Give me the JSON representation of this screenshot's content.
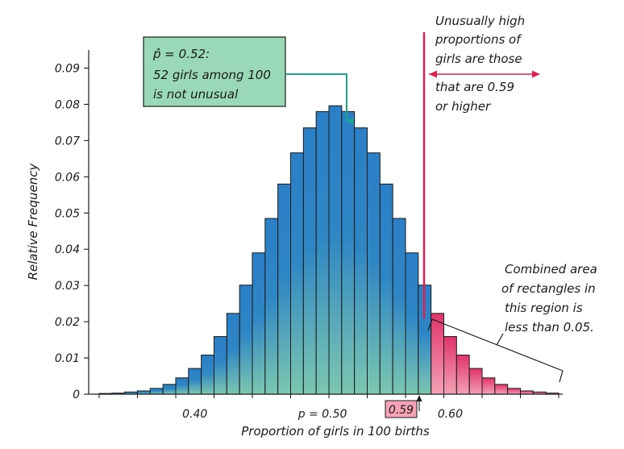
{
  "chart_data": {
    "type": "bar",
    "xlabel": "Proportion of girls in 100 births",
    "ylabel": "Relative Frequency",
    "ylim": [
      0,
      0.095
    ],
    "xlim": [
      0.32,
      0.69
    ],
    "bar_width": 0.01,
    "y_ticks": [
      "0",
      "0.01",
      "0.02",
      "0.03",
      "0.04",
      "0.05",
      "0.06",
      "0.07",
      "0.08",
      "0.09"
    ],
    "y_tick_values": [
      0,
      0.01,
      0.02,
      0.03,
      0.04,
      0.05,
      0.06,
      0.07,
      0.08,
      0.09
    ],
    "x_ticks": [
      {
        "value": 0.4,
        "label": "0.40"
      },
      {
        "value": 0.5,
        "label": "p = 0.50"
      },
      {
        "value": 0.6,
        "label": "0.60"
      }
    ],
    "x": [
      0.33,
      0.34,
      0.35,
      0.36,
      0.37,
      0.38,
      0.39,
      0.4,
      0.41,
      0.42,
      0.43,
      0.44,
      0.45,
      0.46,
      0.47,
      0.48,
      0.49,
      0.5,
      0.51,
      0.52,
      0.53,
      0.54,
      0.55,
      0.56,
      0.57,
      0.58,
      0.59,
      0.6,
      0.61,
      0.62,
      0.63,
      0.64,
      0.65,
      0.66,
      0.67,
      0.68
    ],
    "values": [
      0.0002,
      0.0003,
      0.0006,
      0.0009,
      0.0016,
      0.0027,
      0.0045,
      0.0071,
      0.0108,
      0.0159,
      0.0223,
      0.0301,
      0.039,
      0.0485,
      0.058,
      0.0666,
      0.0735,
      0.078,
      0.0796,
      0.078,
      0.0735,
      0.0666,
      0.058,
      0.0485,
      0.039,
      0.0301,
      0.0223,
      0.0159,
      0.0108,
      0.0071,
      0.0045,
      0.0027,
      0.0016,
      0.0009,
      0.0006,
      0.0003
    ],
    "threshold": 0.59,
    "colors": {
      "bar_top": "#2b7fc6",
      "bar_bottom": "#7cc7b0",
      "tail_top": "#e0346a",
      "tail_bottom": "#f3a2b6",
      "threshold_line": "#e01e4f",
      "callout_fill": "#9ad9b7",
      "highlight_box": "#f5a3b5"
    }
  },
  "annotations": {
    "phat_line1": "p̂ = 0.52:",
    "phat_line2": "52 girls among 100",
    "phat_line3": "is not unusual",
    "high_line1": "Unusually high",
    "high_line2": "proportions of",
    "high_line3": "girls are those",
    "high_line4": "that are 0.59",
    "high_line5": "or higher",
    "area_line1": "Combined area",
    "area_line2": "of rectangles in",
    "area_line3": "this region is",
    "area_line4": "less than 0.05.",
    "highlight_label": "0.59"
  }
}
